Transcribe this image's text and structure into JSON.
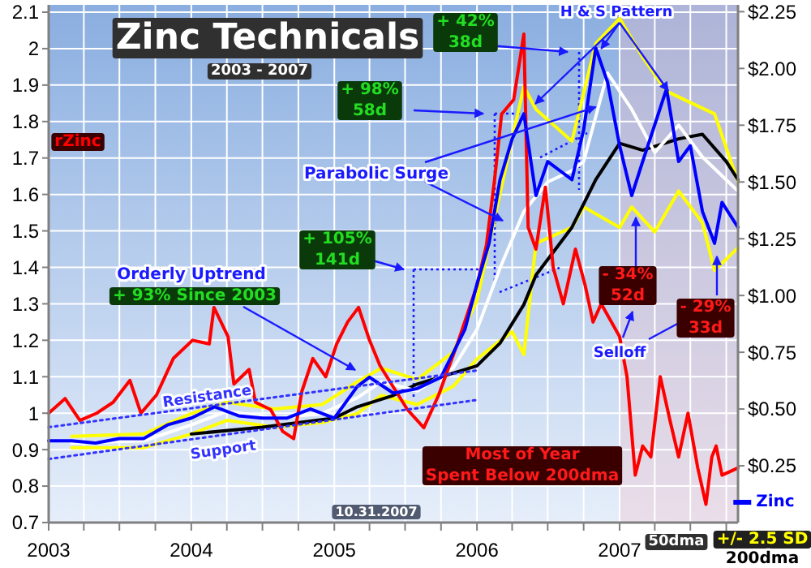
{
  "chart_data": {
    "type": "line",
    "title": "Zinc Technicals",
    "subtitle": "2003 - 2007",
    "xlim": [
      "2003-01-01",
      "2007-10-31"
    ],
    "xticks": [
      {
        "value": "2003-01-01",
        "label": "2003"
      },
      {
        "value": "2003-04-01",
        "label": null
      },
      {
        "value": "2003-07-01",
        "label": null
      },
      {
        "value": "2003-10-01",
        "label": null
      },
      {
        "value": "2004-01-01",
        "label": "2004"
      },
      {
        "value": "2004-04-01",
        "label": null
      },
      {
        "value": "2004-07-01",
        "label": null
      },
      {
        "value": "2004-10-01",
        "label": null
      },
      {
        "value": "2005-01-01",
        "label": "2005"
      },
      {
        "value": "2005-04-01",
        "label": null
      },
      {
        "value": "2005-07-01",
        "label": null
      },
      {
        "value": "2005-10-01",
        "label": null
      },
      {
        "value": "2006-01-01",
        "label": "2006"
      },
      {
        "value": "2006-04-01",
        "label": null
      },
      {
        "value": "2006-07-01",
        "label": null
      },
      {
        "value": "2006-10-01",
        "label": null
      },
      {
        "value": "2007-01-01",
        "label": "2007"
      },
      {
        "value": "2007-04-01",
        "label": null
      },
      {
        "value": "2007-07-01",
        "label": null
      },
      {
        "value": "2007-10-01",
        "label": null
      }
    ],
    "ylim": [
      0.7,
      2.12
    ],
    "yticks": [
      0.7,
      0.8,
      0.9,
      1.0,
      1.1,
      1.2,
      1.3,
      1.4,
      1.5,
      1.6,
      1.7,
      1.8,
      1.9,
      2.0,
      2.1
    ],
    "y2lim": [
      0,
      2.28
    ],
    "y2ticks": [
      {
        "value": 0.25,
        "label": "$0.25"
      },
      {
        "value": 0.5,
        "label": "$0.50"
      },
      {
        "value": 0.75,
        "label": "$0.75"
      },
      {
        "value": 1.0,
        "label": "$1.00"
      },
      {
        "value": 1.25,
        "label": "$1.25"
      },
      {
        "value": 1.5,
        "label": "$1.50"
      },
      {
        "value": 1.75,
        "label": "$1.75"
      },
      {
        "value": 2.0,
        "label": "$2.00"
      },
      {
        "value": 2.25,
        "label": "$2.25"
      }
    ],
    "grid": true,
    "legend": "bottom right",
    "line_style": "solid",
    "marker": "none",
    "series": [
      {
        "name": "+/- 2.5 SD",
        "color": "#ffff00",
        "axis": "y2",
        "x": [
          "2003-03",
          "2003-09",
          "2004-01",
          "2004-04",
          "2004-08",
          "2004-12",
          "2005-03",
          "2005-05",
          "2005-08",
          "2005-11",
          "2006-01",
          "2006-03",
          "2006-05",
          "2006-06",
          "2006-09",
          "2006-11",
          "2007-01",
          "2007-03",
          "2007-05",
          "2007-07",
          "2007-09",
          "2007-10-31"
        ],
        "values": [
          0.38,
          0.39,
          0.48,
          0.53,
          0.5,
          0.52,
          0.62,
          0.68,
          0.63,
          0.75,
          0.98,
          1.45,
          1.92,
          1.82,
          1.68,
          2.11,
          2.22,
          2.05,
          1.9,
          1.85,
          1.8,
          1.5
        ]
      },
      {
        "color": "#ffff00",
        "axis": "y2",
        "x": [
          "2003-03",
          "2003-09",
          "2004-01",
          "2004-04",
          "2004-08",
          "2004-12",
          "2005-03",
          "2005-05",
          "2005-08",
          "2005-11",
          "2006-01",
          "2006-03",
          "2006-04",
          "2006-05",
          "2006-06",
          "2006-09",
          "2006-10",
          "2007-01",
          "2007-02",
          "2007-04",
          "2007-06",
          "2007-08",
          "2007-09",
          "2007-10-31"
        ],
        "values": [
          0.33,
          0.33,
          0.39,
          0.45,
          0.42,
          0.44,
          0.48,
          0.56,
          0.52,
          0.6,
          0.72,
          0.8,
          0.84,
          0.74,
          1.23,
          1.3,
          1.39,
          1.3,
          1.39,
          1.28,
          1.46,
          1.32,
          1.11,
          1.21
        ]
      },
      {
        "name": "200dma",
        "color": "#000000",
        "axis": "y2",
        "x": [
          "2004-01",
          "2004-07",
          "2005-01",
          "2005-03",
          "2005-06",
          "2005-08",
          "2006-01",
          "2006-03",
          "2006-05",
          "2006-06",
          "2006-09",
          "2006-11",
          "2007-01",
          "2007-03",
          "2007-06",
          "2007-08",
          "2007-10",
          "2007-10-31"
        ],
        "values": [
          0.39,
          0.42,
          0.46,
          0.51,
          0.56,
          0.61,
          0.69,
          0.79,
          0.96,
          1.09,
          1.3,
          1.51,
          1.67,
          1.64,
          1.69,
          1.71,
          1.59,
          1.51
        ]
      },
      {
        "name": "50dma",
        "color": "#ffffff",
        "axis": "y2",
        "x": [
          "2003-03",
          "2003-09",
          "2004-01",
          "2004-04",
          "2004-08",
          "2004-12",
          "2005-03",
          "2005-05",
          "2005-08",
          "2005-11",
          "2006-01",
          "2006-03",
          "2006-05",
          "2006-07",
          "2006-09",
          "2006-10",
          "2006-12",
          "2007-02",
          "2007-04",
          "2007-06",
          "2007-08",
          "2007-10-31"
        ],
        "values": [
          0.35,
          0.36,
          0.43,
          0.49,
          0.46,
          0.48,
          0.55,
          0.62,
          0.58,
          0.68,
          0.85,
          1.12,
          1.37,
          1.5,
          1.55,
          1.59,
          1.98,
          1.82,
          1.63,
          1.75,
          1.61,
          1.46
        ]
      },
      {
        "name": "rZinc",
        "color": "#ff0000",
        "x": [
          "2003-01-01",
          "2003-02-12",
          "2003-03-22",
          "2003-05-04",
          "2003-06-15",
          "2003-07-28",
          "2003-08-25",
          "2003-10-04",
          "2003-11-16",
          "2004-01-04",
          "2004-02-16",
          "2004-02-28",
          "2004-04-04",
          "2004-04-19",
          "2004-05-28",
          "2004-06-13",
          "2004-07-22",
          "2004-08-22",
          "2004-09-19",
          "2004-10-10",
          "2004-11-07",
          "2004-12-10",
          "2005-01-07",
          "2005-02-04",
          "2005-03-04",
          "2005-04-01",
          "2005-04-28",
          "2005-07-07",
          "2005-08-18",
          "2005-09-25",
          "2005-11-15",
          "2006-01-01",
          "2006-01-25",
          "2006-02-15",
          "2006-03-05",
          "2006-04-05",
          "2006-05-01",
          "2006-05-12",
          "2006-06-01",
          "2006-06-25",
          "2006-07-15",
          "2006-08-10",
          "2006-09-10",
          "2006-10-05",
          "2006-10-25",
          "2006-11-15",
          "2007-01-01",
          "2007-01-20",
          "2007-02-10",
          "2007-03-01",
          "2007-03-22",
          "2007-04-15",
          "2007-05-10",
          "2007-06-01",
          "2007-06-25",
          "2007-07-20",
          "2007-08-10",
          "2007-08-25",
          "2007-09-05",
          "2007-09-20",
          "2007-10-31"
        ],
        "values": [
          1.0,
          1.04,
          0.98,
          1.0,
          1.03,
          1.09,
          1.0,
          1.05,
          1.15,
          1.2,
          1.19,
          1.29,
          1.21,
          1.08,
          1.12,
          1.03,
          1.01,
          0.95,
          0.93,
          1.06,
          1.15,
          1.1,
          1.19,
          1.25,
          1.29,
          1.2,
          1.13,
          1.01,
          0.96,
          1.05,
          1.2,
          1.35,
          1.46,
          1.64,
          1.82,
          1.86,
          2.04,
          1.51,
          1.45,
          1.62,
          1.4,
          1.3,
          1.45,
          1.35,
          1.25,
          1.3,
          1.21,
          1.1,
          0.83,
          0.91,
          0.88,
          1.1,
          0.98,
          0.88,
          1.0,
          0.85,
          0.75,
          0.88,
          0.91,
          0.83,
          0.85
        ]
      },
      {
        "name": "Zinc",
        "color": "#0000ff",
        "axis": "y2",
        "x": [
          "2003-01",
          "2003-03",
          "2003-05",
          "2003-07",
          "2003-09",
          "2003-11",
          "2004-01",
          "2004-03",
          "2004-05",
          "2004-07",
          "2004-09",
          "2004-11",
          "2005-01",
          "2005-03",
          "2005-04",
          "2005-06",
          "2005-08",
          "2005-10",
          "2005-12",
          "2006-01",
          "2006-02",
          "2006-03",
          "2006-04",
          "2006-05",
          "2006-06",
          "2006-07",
          "2006-08",
          "2006-09",
          "2006-10",
          "2006-11",
          "2006-12",
          "2007-01",
          "2007-02",
          "2007-03",
          "2007-05",
          "2007-06",
          "2007-07",
          "2007-08",
          "2007-09",
          "2007-09-20",
          "2007-10-31"
        ],
        "values": [
          0.36,
          0.36,
          0.35,
          0.37,
          0.37,
          0.43,
          0.46,
          0.51,
          0.47,
          0.46,
          0.46,
          0.5,
          0.46,
          0.6,
          0.64,
          0.57,
          0.59,
          0.64,
          0.85,
          1.05,
          1.23,
          1.51,
          1.69,
          1.8,
          1.44,
          1.59,
          1.55,
          1.51,
          1.73,
          2.09,
          1.94,
          1.66,
          1.44,
          1.59,
          1.91,
          1.59,
          1.66,
          1.37,
          1.23,
          1.41,
          1.3
        ]
      },
      {
        "name": "Resistance",
        "color": "#3333ff",
        "axis": "y2",
        "line_style": "dotted",
        "x": [
          "2003-01-01",
          "2006-01-01"
        ],
        "values": [
          0.42,
          0.67
        ]
      },
      {
        "name": "Support",
        "color": "#3333ff",
        "axis": "y2",
        "line_style": "dotted",
        "x": [
          "2003-01-01",
          "2006-01-01"
        ],
        "values": [
          0.28,
          0.54
        ]
      }
    ],
    "bands": [
      {
        "axis": "x",
        "from": "2007-01-01",
        "to": "2007-10-31",
        "color": "#f0c0c8"
      }
    ],
    "annotations": [
      "+ 42%\n38d",
      "+ 98%\n58d",
      {
        "text": "H & S Pattern",
        "x": "2006-11-15",
        "y": 2.0
      },
      {
        "text": "Parabolic Surge",
        "x": "2006-11-01",
        "y": 1.84
      },
      "+ 105%\n141d",
      "Orderly Uptrend",
      "+ 93% Since 2003",
      "- 34%\n52d",
      "- 29%\n33d",
      "Selloff",
      "Most of Year\nSpent Below 200dma",
      "10.31.2007"
    ]
  }
}
